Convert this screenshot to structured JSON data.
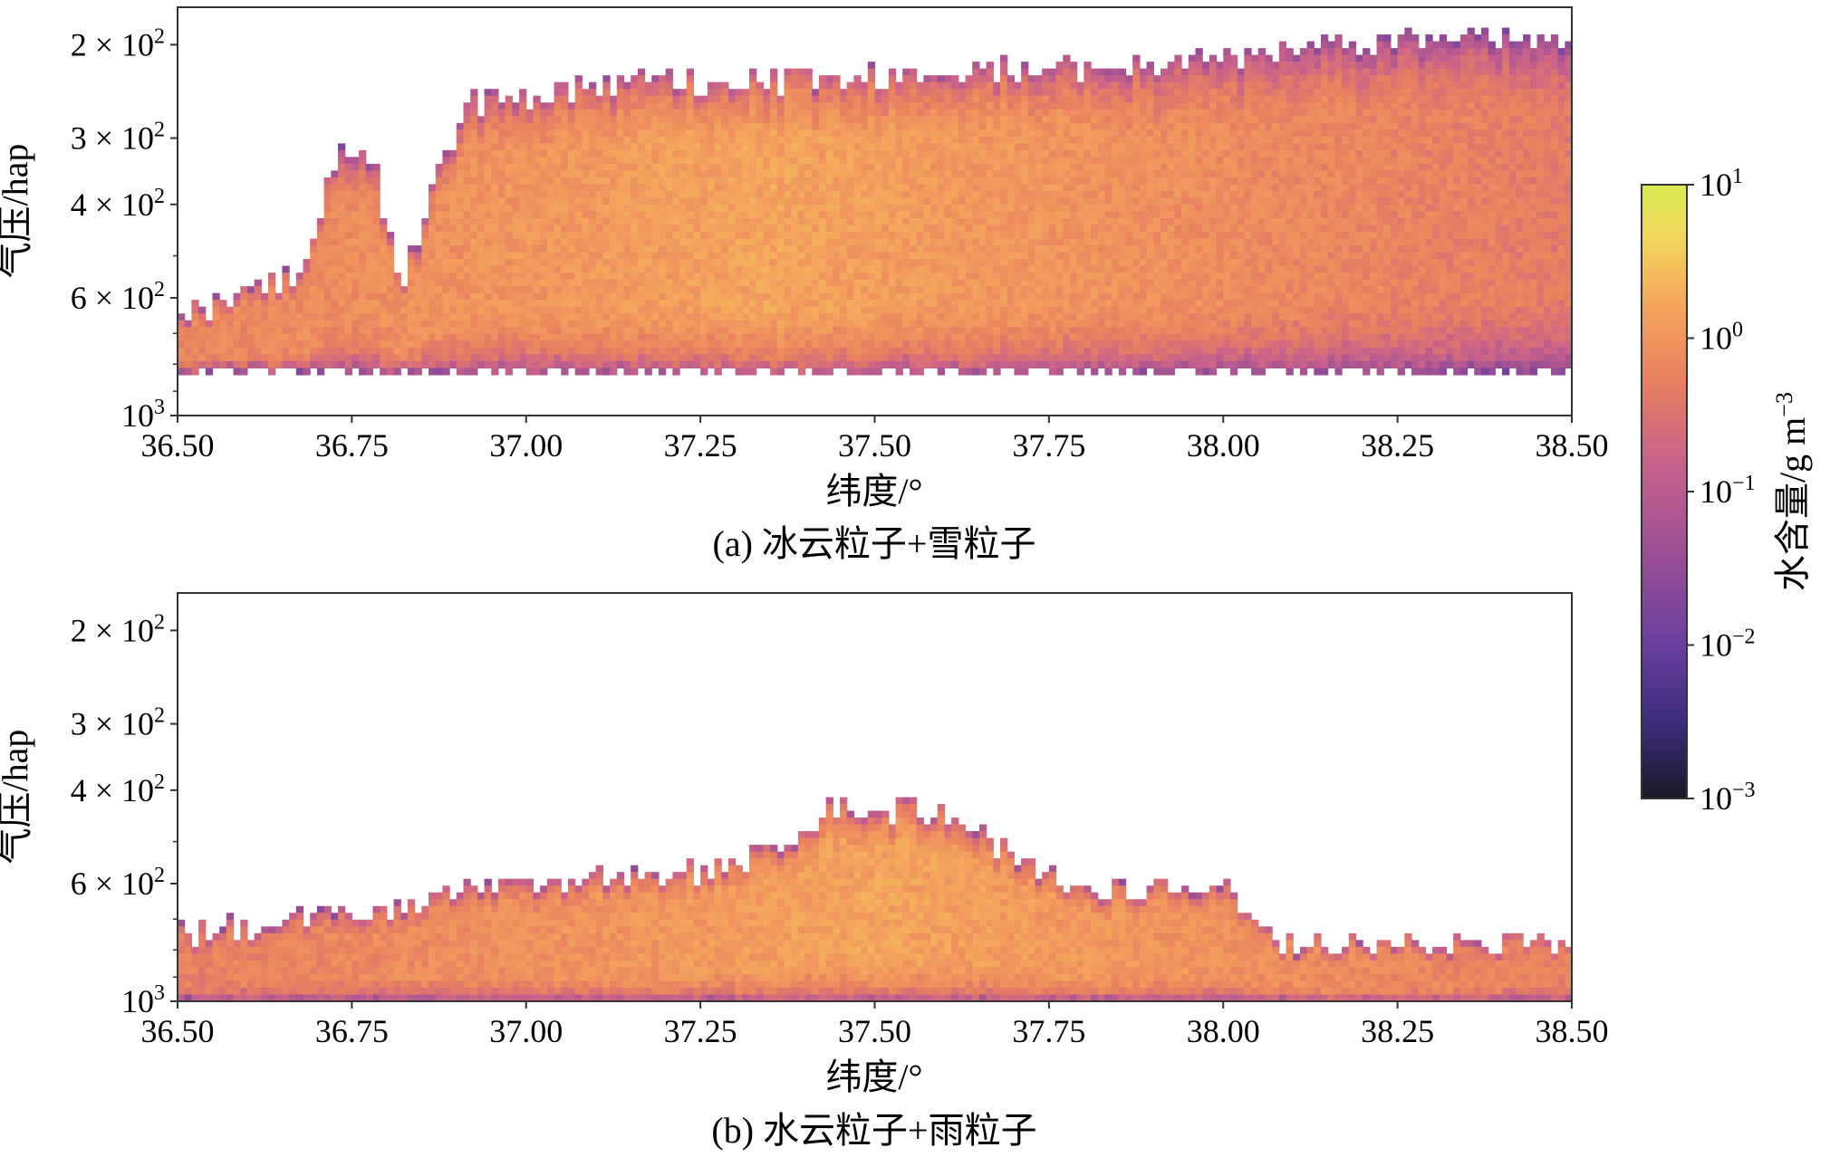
{
  "chart_data": [
    {
      "type": "heatmap",
      "panel": "a",
      "caption": "(a) 冰云粒子+雪粒子",
      "xlabel": "纬度/°",
      "ylabel": "气压/hap",
      "xlim": [
        36.5,
        38.5
      ],
      "ylim": [
        1000,
        170
      ],
      "yscale": "log",
      "xticks": [
        36.5,
        36.75,
        37.0,
        37.25,
        37.5,
        37.75,
        38.0,
        38.25,
        38.5
      ],
      "xtick_labels": [
        "36.50",
        "36.75",
        "37.00",
        "37.25",
        "37.50",
        "37.75",
        "38.00",
        "38.25",
        "38.50"
      ],
      "yticks": [
        200,
        300,
        400,
        600,
        1000
      ],
      "ytick_labels": [
        [
          "2 × 10",
          "2"
        ],
        [
          "3 × 10",
          "2"
        ],
        [
          "4 × 10",
          "2"
        ],
        [
          "6 × 10",
          "2"
        ],
        [
          "10",
          "3"
        ]
      ],
      "field_summary": {
        "cloud_top_hpa_profile": [
          [
            36.5,
            650
          ],
          [
            36.57,
            620
          ],
          [
            36.62,
            560
          ],
          [
            36.68,
            560
          ],
          [
            36.72,
            330
          ],
          [
            36.78,
            320
          ],
          [
            36.82,
            560
          ],
          [
            36.88,
            330
          ],
          [
            36.92,
            260
          ],
          [
            37.0,
            250
          ],
          [
            37.1,
            240
          ],
          [
            37.25,
            235
          ],
          [
            37.5,
            230
          ],
          [
            37.75,
            220
          ],
          [
            38.0,
            215
          ],
          [
            38.1,
            205
          ],
          [
            38.25,
            195
          ],
          [
            38.5,
            195
          ]
        ],
        "cloud_base_hpa": 820,
        "max_water_content_g_m3": 1.0,
        "max_at_latitude": 37.35
      }
    },
    {
      "type": "heatmap",
      "panel": "b",
      "caption": "(b) 水云粒子+雨粒子",
      "xlabel": "纬度/°",
      "ylabel": "气压/hap",
      "xlim": [
        36.5,
        38.5
      ],
      "ylim": [
        1000,
        170
      ],
      "yscale": "log",
      "xticks": [
        36.5,
        36.75,
        37.0,
        37.25,
        37.5,
        37.75,
        38.0,
        38.25,
        38.5
      ],
      "xtick_labels": [
        "36.50",
        "36.75",
        "37.00",
        "37.25",
        "37.50",
        "37.75",
        "38.00",
        "38.25",
        "38.50"
      ],
      "yticks": [
        200,
        300,
        400,
        600,
        1000
      ],
      "ytick_labels": [
        [
          "2 × 10",
          "2"
        ],
        [
          "3 × 10",
          "2"
        ],
        [
          "4 × 10",
          "2"
        ],
        [
          "6 × 10",
          "2"
        ],
        [
          "10",
          "3"
        ]
      ],
      "field_summary": {
        "cloud_top_hpa_profile": [
          [
            36.5,
            750
          ],
          [
            37.05,
            590
          ],
          [
            37.3,
            560
          ],
          [
            37.45,
            430
          ],
          [
            37.6,
            440
          ],
          [
            37.8,
            620
          ],
          [
            38.0,
            600
          ],
          [
            38.08,
            780
          ],
          [
            38.5,
            780
          ]
        ],
        "cloud_base_hpa": 1000,
        "max_water_content_g_m3": 1.0,
        "max_at_latitude": 37.5
      }
    }
  ],
  "colorbar": {
    "label": "水含量/g m",
    "label_superscript": "−3",
    "scale": "log",
    "range": [
      0.001,
      10
    ],
    "ticks": [
      [
        "10",
        "1"
      ],
      [
        "10",
        "0"
      ],
      [
        "10",
        "−1"
      ],
      [
        "10",
        "−2"
      ],
      [
        "10",
        "−3"
      ]
    ],
    "colormap_stops": [
      "#1c1827",
      "#3b2b7a",
      "#6a3f9f",
      "#9b4f95",
      "#c9628a",
      "#e88060",
      "#f5a45d",
      "#f2d95a",
      "#d7ea52"
    ]
  }
}
